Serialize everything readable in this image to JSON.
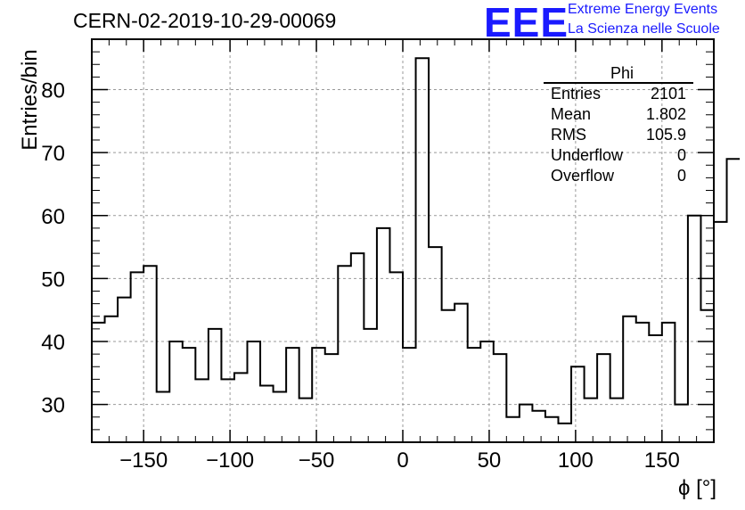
{
  "header": {
    "title": "CERN-02-2019-10-29-00069",
    "logo_text": "EEE",
    "logo_line1": "Extreme Energy Events",
    "logo_line2": "La Scienza nelle Scuole"
  },
  "stats_box": {
    "name": "Phi",
    "rows": [
      {
        "label": "Entries",
        "value": "2101"
      },
      {
        "label": "Mean",
        "value": "1.802"
      },
      {
        "label": "RMS",
        "value": "105.9"
      },
      {
        "label": "Underflow",
        "value": "0"
      },
      {
        "label": "Overflow",
        "value": "0"
      }
    ]
  },
  "colors": {
    "logo": "#1a1aff",
    "line": "#000000",
    "grid": "#999999"
  },
  "chart_data": {
    "type": "histogram",
    "title": "CERN-02-2019-10-29-00069",
    "xlabel": "ϕ [°]",
    "ylabel": "Entries/bin",
    "xlim": [
      -180,
      180
    ],
    "ylim": [
      24,
      88
    ],
    "bin_width": 7.5,
    "x_ticks": [
      -150,
      -100,
      -50,
      0,
      50,
      100,
      150
    ],
    "x_tick_labels": [
      "−150",
      "−100",
      "−50",
      "0",
      "50",
      "100",
      "150"
    ],
    "y_ticks": [
      30,
      40,
      50,
      60,
      70,
      80
    ],
    "y_tick_labels": [
      "30",
      "40",
      "50",
      "60",
      "70",
      "80"
    ],
    "grid": true,
    "values": [
      43,
      44,
      47,
      51,
      52,
      32,
      40,
      39,
      34,
      42,
      34,
      35,
      40,
      33,
      32,
      39,
      31,
      39,
      38,
      52,
      54,
      42,
      58,
      51,
      39,
      85,
      55,
      45,
      46,
      39,
      40,
      38,
      28,
      30,
      29,
      28,
      27,
      36,
      31,
      38,
      31,
      44,
      43,
      41,
      43,
      30,
      60,
      45,
      59,
      69
    ]
  }
}
